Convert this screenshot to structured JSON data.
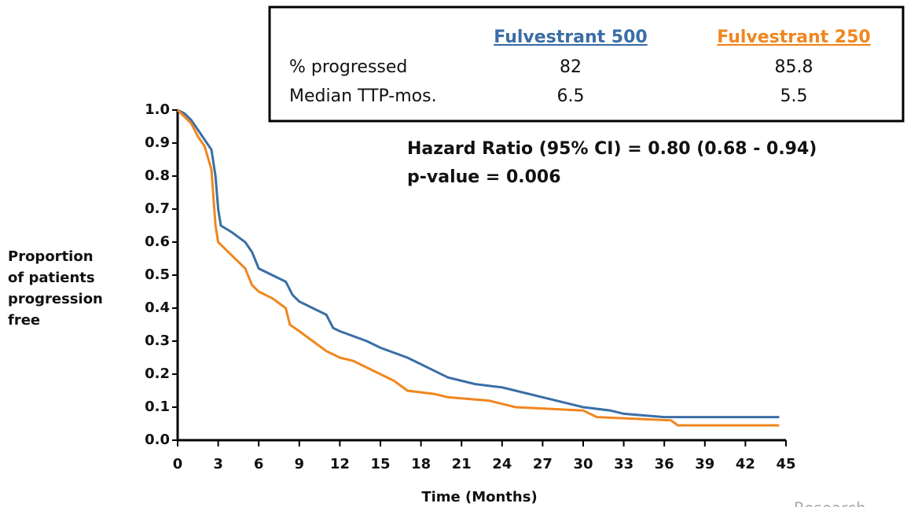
{
  "chart_data": {
    "type": "line",
    "step": true,
    "y_label": [
      "Proportion",
      "of patients",
      "progression",
      "free"
    ],
    "x_label": "Time (Months)",
    "annotations": [
      "Hazard Ratio (95% CI) = 0.80 (0.68 - 0.94)",
      "p-value = 0.006"
    ],
    "watermark": "Research",
    "table": {
      "rows": [
        [
          "% progressed",
          82,
          85.8
        ],
        [
          "Median TTP-mos.",
          6.5,
          5.5
        ]
      ]
    },
    "xlim": [
      0,
      45
    ],
    "xticks": [
      0,
      3,
      6,
      9,
      12,
      15,
      18,
      21,
      24,
      27,
      30,
      33,
      36,
      39,
      42,
      45
    ],
    "ylim": [
      0,
      1
    ],
    "yticks": [
      {
        "value": 0,
        "label": "0.0"
      },
      0.1,
      0.2,
      0.3,
      0.4,
      0.5,
      0.6,
      0.7,
      0.8,
      0.9,
      {
        "value": 1,
        "label": "1.0"
      }
    ],
    "series": [
      {
        "name": "Fulvestrant 500",
        "color": "#3a6ea5",
        "x": [
          0,
          0.5,
          1,
          1.5,
          2,
          2.5,
          2.8,
          3,
          3.2,
          4,
          5,
          5.5,
          6,
          7,
          8,
          8.5,
          9,
          10,
          11,
          11.5,
          12,
          14,
          15,
          17,
          18,
          19,
          20,
          22,
          24,
          25,
          27,
          29,
          30,
          32,
          33,
          36,
          44.5
        ],
        "values": [
          1.0,
          0.99,
          0.97,
          0.94,
          0.91,
          0.88,
          0.8,
          0.7,
          0.65,
          0.63,
          0.6,
          0.57,
          0.52,
          0.5,
          0.48,
          0.44,
          0.42,
          0.4,
          0.38,
          0.34,
          0.33,
          0.3,
          0.28,
          0.25,
          0.23,
          0.21,
          0.19,
          0.17,
          0.16,
          0.15,
          0.13,
          0.11,
          0.1,
          0.09,
          0.08,
          0.07,
          0.07
        ]
      },
      {
        "name": "Fulvestrant 250",
        "color": "#f0861e",
        "x": [
          0,
          0.5,
          1,
          1.5,
          2,
          2.5,
          2.8,
          3,
          4,
          5,
          5.5,
          6,
          7,
          8,
          8.3,
          9,
          10,
          11,
          12,
          13,
          14,
          15,
          16,
          17,
          19,
          20,
          23,
          24,
          25,
          30,
          31,
          36.5,
          37,
          44.5
        ],
        "values": [
          1.0,
          0.98,
          0.96,
          0.92,
          0.89,
          0.82,
          0.65,
          0.6,
          0.56,
          0.52,
          0.47,
          0.45,
          0.43,
          0.4,
          0.35,
          0.33,
          0.3,
          0.27,
          0.25,
          0.24,
          0.22,
          0.2,
          0.18,
          0.15,
          0.14,
          0.13,
          0.12,
          0.11,
          0.1,
          0.09,
          0.07,
          0.06,
          0.045,
          0.045
        ]
      }
    ]
  }
}
